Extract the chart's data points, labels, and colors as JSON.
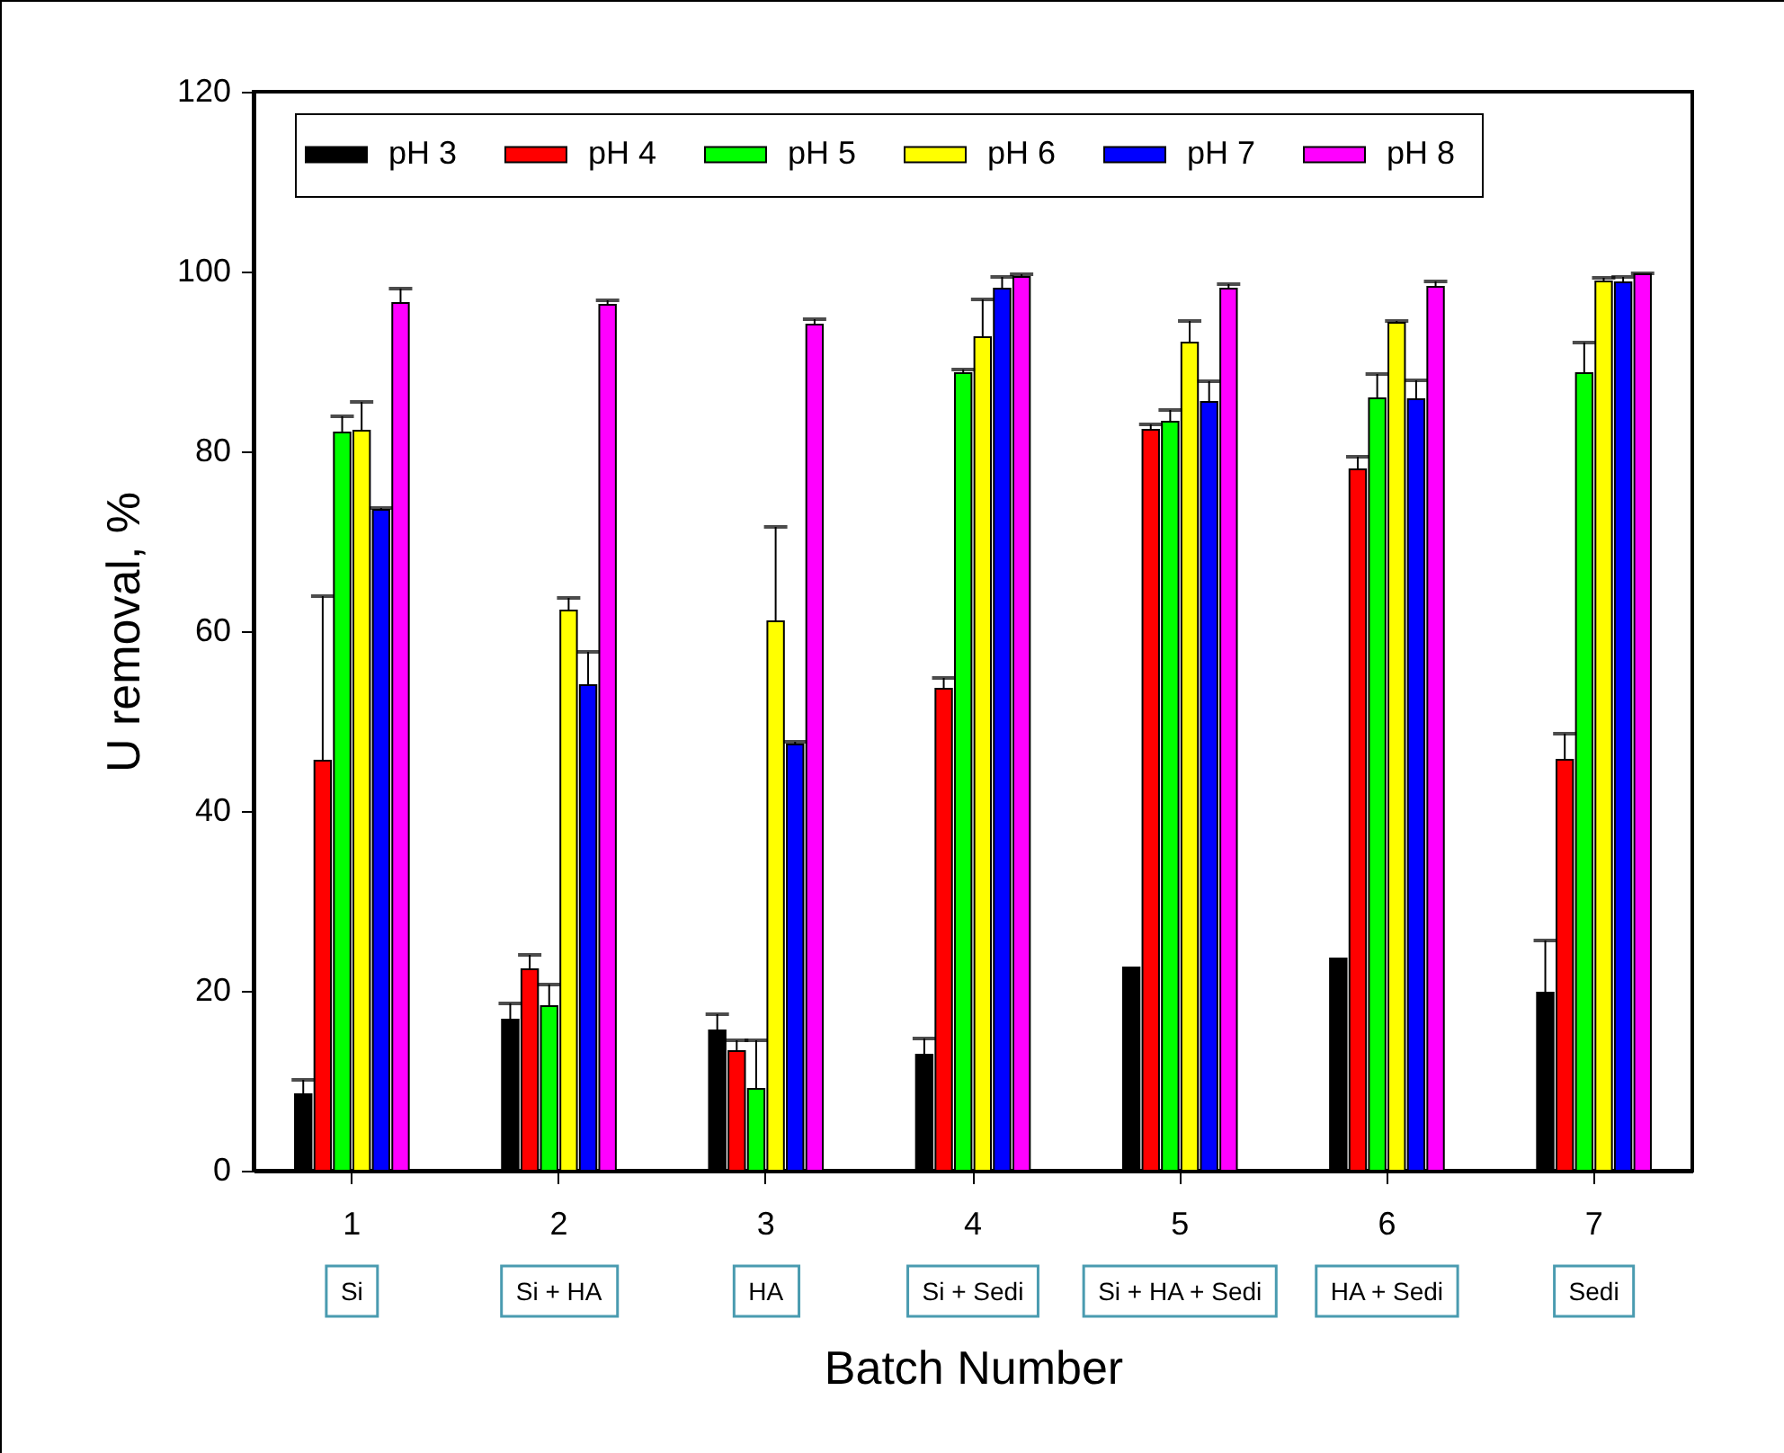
{
  "chart_data": {
    "type": "bar",
    "xlabel": "Batch Number",
    "ylabel": "U removal, %",
    "categories": [
      "1",
      "2",
      "3",
      "4",
      "5",
      "6",
      "7"
    ],
    "ylim": [
      0,
      120
    ],
    "yticks": [
      0,
      20,
      40,
      60,
      80,
      100,
      120
    ],
    "grid": false,
    "legend": "top",
    "series": [
      {
        "name": "pH 3",
        "color": "#000000",
        "values": [
          8.5,
          16.8,
          15.6,
          12.9,
          22.6,
          23.6,
          19.8
        ],
        "errors": [
          [
            8.5,
            10.1
          ],
          [
            16.8,
            18.6
          ],
          [
            15.6,
            17.4
          ],
          [
            12.9,
            14.7
          ],
          null,
          null,
          [
            19.8,
            25.6
          ]
        ]
      },
      {
        "name": "pH 4",
        "color": "#ff0000",
        "values": [
          45.6,
          22.4,
          13.3,
          53.6,
          82.4,
          78.0,
          45.7
        ],
        "errors": [
          [
            45.6,
            63.9
          ],
          [
            22.4,
            24.0
          ],
          [
            13.3,
            14.5
          ],
          [
            53.6,
            54.8
          ],
          [
            82.4,
            83.0
          ],
          [
            78.0,
            79.4
          ],
          [
            45.7,
            48.6
          ]
        ]
      },
      {
        "name": "pH 5",
        "color": "#00ff00",
        "values": [
          82.1,
          18.3,
          9.1,
          88.7,
          83.3,
          85.9,
          88.7
        ],
        "errors": [
          [
            82.1,
            83.9
          ],
          [
            18.3,
            20.7
          ],
          [
            9.1,
            14.5
          ],
          [
            88.7,
            89.1
          ],
          [
            83.3,
            84.6
          ],
          [
            85.9,
            88.6
          ],
          [
            88.7,
            92.1
          ]
        ]
      },
      {
        "name": "pH 6",
        "color": "#ffff00",
        "values": [
          82.3,
          62.3,
          61.1,
          92.7,
          92.1,
          94.3,
          98.9
        ],
        "errors": [
          [
            82.3,
            85.5
          ],
          [
            62.3,
            63.7
          ],
          [
            61.1,
            71.6
          ],
          [
            92.7,
            96.9
          ],
          [
            92.1,
            94.5
          ],
          [
            94.3,
            94.5
          ],
          [
            98.9,
            99.3
          ]
        ]
      },
      {
        "name": "pH 7",
        "color": "#0000ff",
        "values": [
          73.5,
          54.0,
          47.4,
          98.1,
          85.5,
          85.8,
          98.8
        ],
        "errors": [
          [
            73.5,
            73.7
          ],
          [
            54.0,
            57.7
          ],
          [
            47.4,
            47.7
          ],
          [
            98.1,
            99.4
          ],
          [
            85.5,
            87.8
          ],
          [
            85.8,
            87.9
          ],
          [
            98.8,
            99.4
          ]
        ]
      },
      {
        "name": "pH 8",
        "color": "#ff00ff",
        "values": [
          96.5,
          96.3,
          94.1,
          99.4,
          98.1,
          98.3,
          99.7
        ],
        "errors": [
          [
            96.5,
            98.1
          ],
          [
            96.3,
            96.8
          ],
          [
            94.1,
            94.7
          ],
          [
            99.4,
            99.7
          ],
          [
            98.1,
            98.6
          ],
          [
            98.3,
            98.9
          ],
          [
            99.7,
            99.8
          ]
        ]
      }
    ],
    "annotations": [
      "Si",
      "Si + HA",
      "HA",
      "Si + Sedi",
      "Si + HA + Sedi",
      "HA + Sedi",
      "Sedi"
    ]
  }
}
